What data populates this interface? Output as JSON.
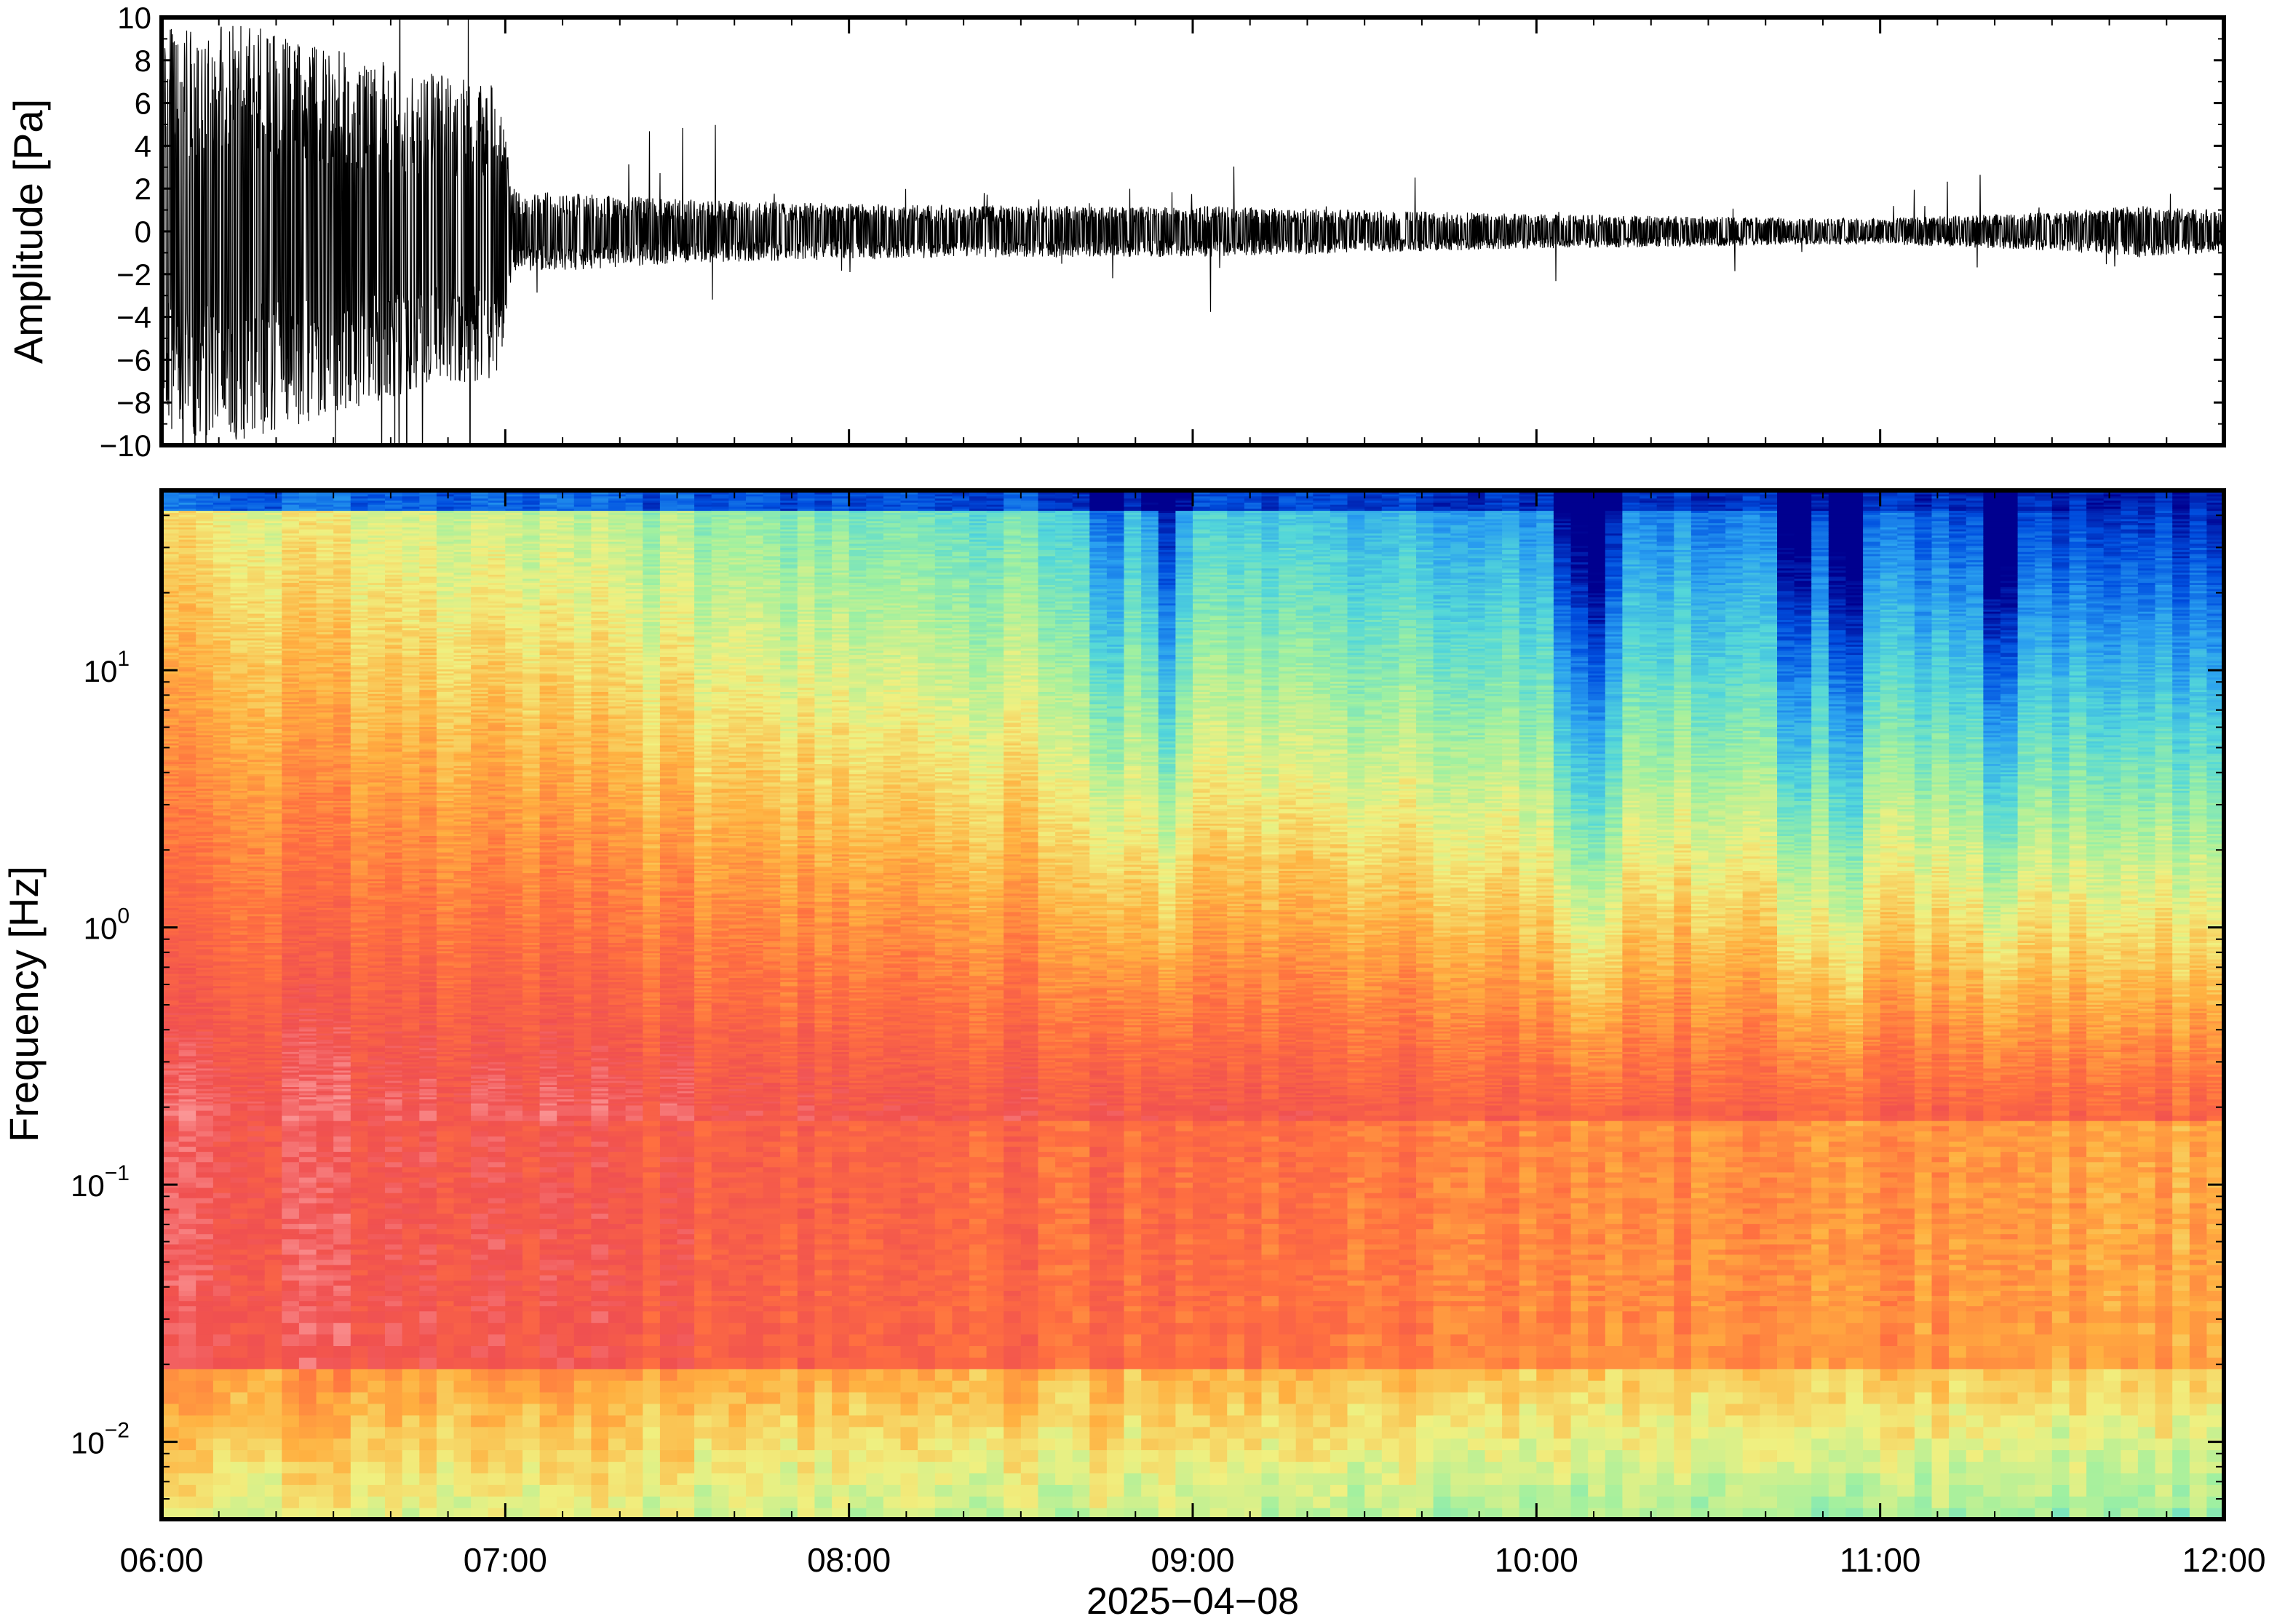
{
  "chart_data": [
    {
      "type": "line",
      "panel": "waveform",
      "ylabel": "Amplitude [Pa]",
      "ylim": [
        -10,
        10
      ],
      "yticks": [
        -10,
        -8,
        -6,
        -4,
        -2,
        0,
        2,
        4,
        6,
        8,
        10
      ],
      "ytick_labels": [
        "−10",
        "−8",
        "−6",
        "−4",
        "−2",
        "0",
        "2",
        "4",
        "6",
        "8",
        "10"
      ],
      "xlim": [
        "06:00",
        "12:00"
      ],
      "envelope": {
        "time_hours": [
          6.0,
          6.25,
          6.5,
          6.75,
          6.98,
          7.02,
          7.5,
          8.0,
          8.5,
          9.0,
          9.5,
          10.0,
          10.5,
          11.0,
          11.5,
          11.75,
          12.0
        ],
        "amplitude_pa": [
          9.5,
          9.8,
          8.5,
          7.5,
          7.0,
          2.0,
          1.5,
          1.3,
          1.2,
          1.2,
          1.0,
          0.8,
          0.7,
          0.6,
          0.9,
          1.2,
          1.0
        ]
      },
      "color": "#000000"
    },
    {
      "type": "heatmap",
      "panel": "spectrogram",
      "ylabel": "Frequency [Hz]",
      "yscale": "log",
      "ylim": [
        0.005,
        50
      ],
      "yticks": [
        0.01,
        0.1,
        1,
        10
      ],
      "ytick_labels": [
        {
          "base": "10",
          "exp": "−2"
        },
        {
          "base": "10",
          "exp": "−1"
        },
        {
          "base": "10",
          "exp": "0"
        },
        {
          "base": "10",
          "exp": "1"
        }
      ],
      "xlim": [
        "06:00",
        "12:00"
      ],
      "colormap": [
        "#00008f",
        "#0050e0",
        "#2aa0f0",
        "#55d8d8",
        "#a0f0a0",
        "#f0f080",
        "#ffb040",
        "#ff7040",
        "#f05050",
        "#ffb0b0"
      ],
      "blue_columns_hours": [
        8.75,
        8.92,
        10.1,
        10.18,
        10.75,
        10.9,
        11.35
      ]
    }
  ],
  "x_axis": {
    "tick_labels": [
      "06:00",
      "07:00",
      "08:00",
      "09:00",
      "10:00",
      "11:00",
      "12:00"
    ],
    "date_label": "2025−04−08"
  }
}
